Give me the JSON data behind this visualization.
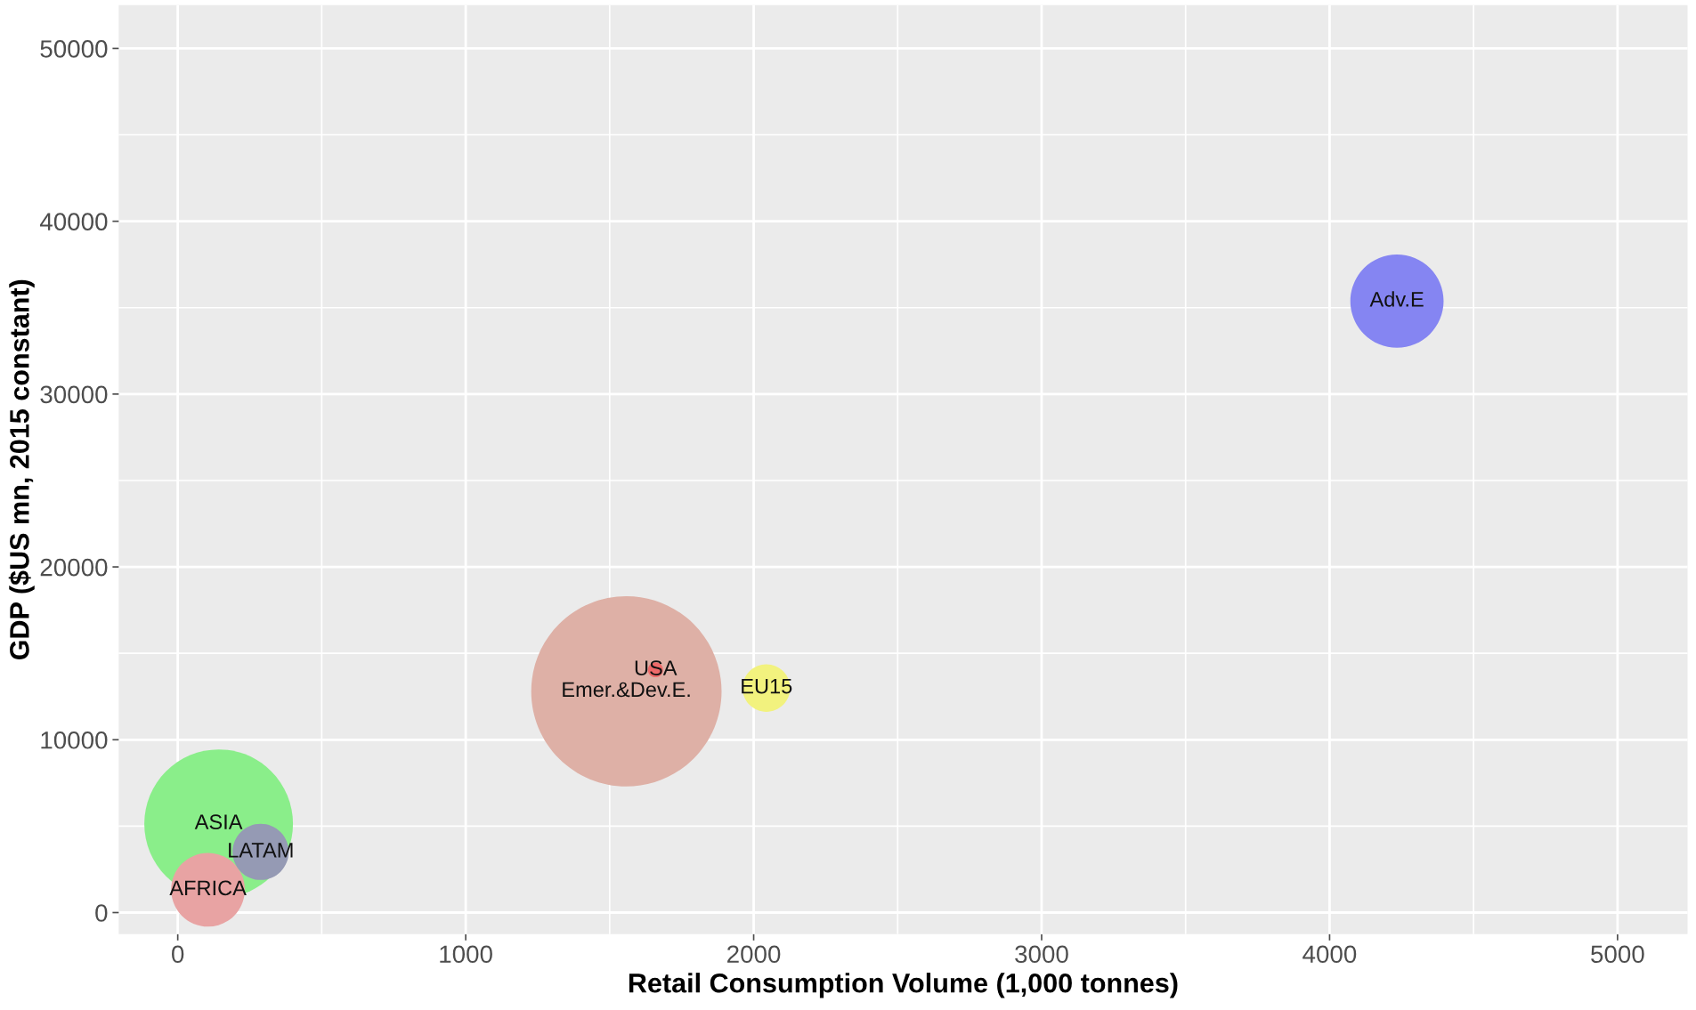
{
  "chart_data": {
    "type": "bubble",
    "xlabel": "Retail Consumption Volume (1,000 tonnes)",
    "ylabel": "GDP ($US mn, 2015 constant)",
    "xlim": [
      -205,
      5243
    ],
    "ylim": [
      -1255,
      52510
    ],
    "xticks": [
      0,
      {
        "value": 500,
        "label": null
      },
      1000,
      {
        "value": 1500,
        "label": null
      },
      2000,
      {
        "value": 2500,
        "label": null
      },
      3000,
      {
        "value": 3500,
        "label": null
      },
      4000,
      {
        "value": 4500,
        "label": null
      },
      5000
    ],
    "yticks": [
      0,
      {
        "value": 5000,
        "label": null
      },
      10000,
      {
        "value": 15000,
        "label": null
      },
      20000,
      {
        "value": 25000,
        "label": null
      },
      30000,
      {
        "value": 35000,
        "label": null
      },
      40000,
      {
        "value": 45000,
        "label": null
      },
      50000
    ],
    "grid": true,
    "legend": false,
    "series": [
      {
        "name": "Emer.&Dev.E.",
        "color": "#deb0a6",
        "x": [
          1558
        ],
        "values": [
          12800
        ],
        "sizes": [
          1
        ]
      },
      {
        "name": "Adv.E",
        "color": "#8585f2",
        "x": [
          4234
        ],
        "values": [
          35380
        ],
        "sizes": [
          0.24
        ]
      },
      {
        "name": "EU15",
        "color": "#f2f27e",
        "x": [
          2044
        ],
        "values": [
          12990
        ],
        "sizes": [
          0.0625
        ]
      },
      {
        "name": "USA",
        "color": "#ee6a6a",
        "x": [
          1659
        ],
        "values": [
          14050
        ],
        "sizes": [
          0.0063
        ]
      },
      {
        "name": "ASIA",
        "color": "#8aee8a",
        "x": [
          142
        ],
        "values": [
          5140
        ],
        "sizes": [
          0.61
        ]
      },
      {
        "name": "AFRICA",
        "color": "#e8a3a3",
        "x": [
          105
        ],
        "values": [
          1320
        ],
        "sizes": [
          0.15
        ]
      },
      {
        "name": "LATAM",
        "color": "#959ab4",
        "x": [
          288
        ],
        "values": [
          3510
        ],
        "sizes": [
          0.087
        ]
      }
    ]
  }
}
